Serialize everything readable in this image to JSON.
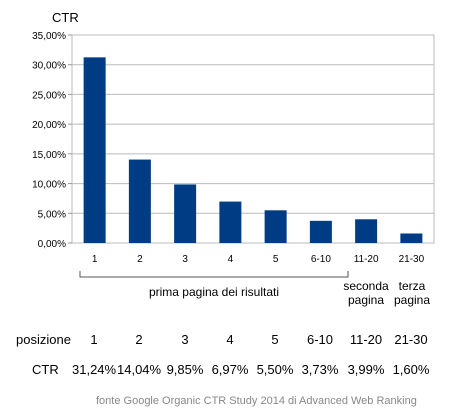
{
  "chart_data": {
    "type": "bar",
    "title": "CTR",
    "xlabel": "",
    "ylabel": "",
    "categories": [
      "1",
      "2",
      "3",
      "4",
      "5",
      "6-10",
      "11-20",
      "21-30"
    ],
    "values": [
      31.24,
      14.04,
      9.85,
      6.97,
      5.5,
      3.73,
      3.99,
      1.6
    ],
    "ylim": [
      0,
      35
    ],
    "yticks": [
      "0,00%",
      "5,00%",
      "10,00%",
      "15,00%",
      "20,00%",
      "25,00%",
      "30,00%",
      "35,00%"
    ],
    "grid": true,
    "bar_color": "#003C84"
  },
  "groups": {
    "first_page": "prima pagina dei risultati",
    "second_page": [
      "seconda",
      "pagina"
    ],
    "third_page": [
      "terza",
      "pagina"
    ]
  },
  "table": {
    "position_label": "posizione",
    "positions": [
      "1",
      "2",
      "3",
      "4",
      "5",
      "6-10",
      "11-20",
      "21-30"
    ],
    "ctr_label": "CTR",
    "ctr_values": [
      "31,24%",
      "14,04%",
      "9,85%",
      "6,97%",
      "5,50%",
      "3,73%",
      "3,99%",
      "1,60%"
    ]
  },
  "footer": "fonte Google Organic CTR Study 2014 di Advanced Web Ranking"
}
